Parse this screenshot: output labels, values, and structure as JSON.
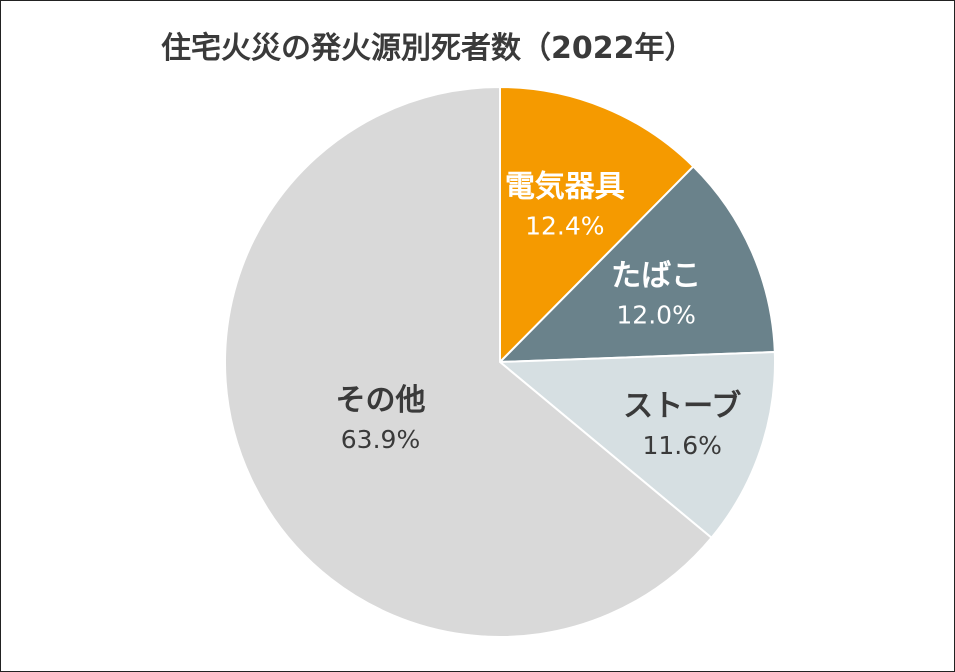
{
  "chart_data": {
    "type": "pie",
    "title": "住宅火災の発火源別死者数（2022年）",
    "slices": [
      {
        "label": "電気器具",
        "value": 12.4,
        "value_label": "12.4%",
        "color": "#f59a00",
        "text_color": "#ffffff"
      },
      {
        "label": "たばこ",
        "value": 12.0,
        "value_label": "12.0%",
        "color": "#6a828b",
        "text_color": "#ffffff"
      },
      {
        "label": "ストーブ",
        "value": 11.6,
        "value_label": "11.6%",
        "color": "#d6dfe2",
        "text_color": "#3a3a3a"
      },
      {
        "label": "その他",
        "value": 63.9,
        "value_label": "63.9%",
        "color": "#d9d9d9",
        "text_color": "#3a3a3a"
      }
    ],
    "start": "12 o'clock",
    "direction": "clockwise",
    "legend": "none"
  }
}
